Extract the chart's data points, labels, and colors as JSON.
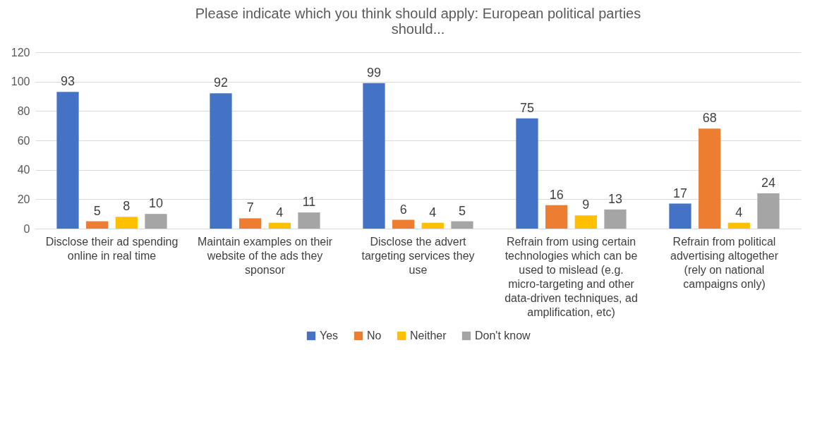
{
  "chart_data": {
    "type": "bar",
    "title": "Please indicate which you think should apply: European political parties should...",
    "categories": [
      "Disclose their ad spending online in real time",
      "Maintain examples on their website of the ads they sponsor",
      "Disclose the advert targeting services they use",
      "Refrain from using certain technologies which can be used to mislead (e.g. micro-targeting and other data-driven techniques, ad amplification, etc)",
      "Refrain from political advertising altogether (rely on national campaigns only)"
    ],
    "series": [
      {
        "name": "Yes",
        "color": "#4472c4",
        "values": [
          93,
          92,
          99,
          75,
          17
        ]
      },
      {
        "name": "No",
        "color": "#ed7d31",
        "values": [
          5,
          7,
          6,
          16,
          68
        ]
      },
      {
        "name": "Neither",
        "color": "#ffc000",
        "values": [
          8,
          4,
          4,
          9,
          4
        ]
      },
      {
        "name": "Don't know",
        "color": "#a5a5a5",
        "values": [
          10,
          11,
          5,
          13,
          24
        ]
      }
    ],
    "ylim": [
      0,
      120
    ],
    "yticks": [
      0,
      20,
      40,
      60,
      80,
      100,
      120
    ],
    "grid": "y",
    "legend": "bottom",
    "data_labels": true
  }
}
